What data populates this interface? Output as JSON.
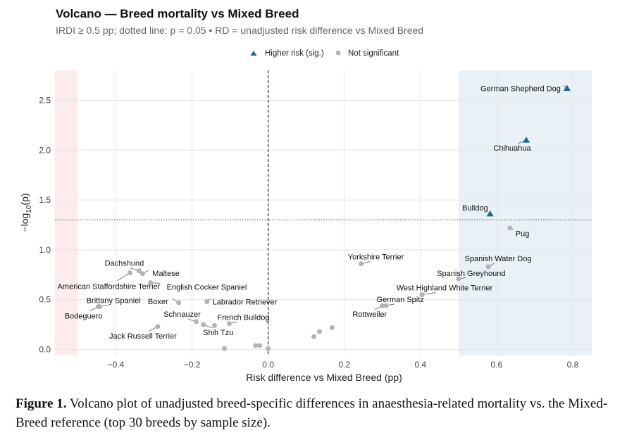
{
  "chart_data": {
    "type": "scatter",
    "title": "Volcano — Breed mortality vs Mixed Breed",
    "subtitle": "IRDI ≥ 0.5 pp; dotted line: p = 0.05 • RD = unadjusted risk difference vs Mixed Breed",
    "xlabel": "Risk difference vs Mixed Breed (pp)",
    "ylabel_main": "−log",
    "ylabel_sub": "10",
    "ylabel_tail": "(p)",
    "xlim": [
      -0.56,
      0.85
    ],
    "ylim": [
      -0.06,
      2.8
    ],
    "xticks": [
      -0.4,
      -0.2,
      0.0,
      0.2,
      0.4,
      0.6,
      0.8
    ],
    "xtick_labels": [
      "−0.4",
      "−0.2",
      "0.0",
      "0.2",
      "0.4",
      "0.6",
      "0.8"
    ],
    "yticks": [
      0.0,
      0.5,
      1.0,
      1.5,
      2.0,
      2.5
    ],
    "ytick_labels": [
      "0.0",
      "0.5",
      "1.0",
      "1.5",
      "2.0",
      "2.5"
    ],
    "grid": true,
    "legend_position": "top",
    "significance_line_y": 1.301,
    "reference_line_x": 0,
    "shaded_regions": [
      {
        "xmin": -0.56,
        "xmax": -0.5,
        "color": "#fdecec"
      },
      {
        "xmin": 0.5,
        "xmax": 0.85,
        "color": "#e9f0f6"
      }
    ],
    "legend": [
      {
        "label": "Higher risk (sig.)",
        "marker": "triangle",
        "color": "#1a6a86"
      },
      {
        "label": "Not significant",
        "marker": "circle",
        "color": "#b3b3b3"
      }
    ],
    "points": [
      {
        "label": "German Shepherd Dog",
        "x": 0.785,
        "y": 2.62,
        "group": "Higher risk (sig.)"
      },
      {
        "label": "Chihuahua",
        "x": 0.678,
        "y": 2.1,
        "group": "Higher risk (sig.)"
      },
      {
        "label": "Bulldog",
        "x": 0.583,
        "y": 1.36,
        "group": "Higher risk (sig.)"
      },
      {
        "label": "Pug",
        "x": 0.635,
        "y": 1.22,
        "group": "Not significant"
      },
      {
        "label": "Spanish Water Dog",
        "x": 0.578,
        "y": 0.83,
        "group": "Not significant"
      },
      {
        "label": "Spanish Greyhound",
        "x": 0.5,
        "y": 0.71,
        "group": "Not significant"
      },
      {
        "label": "West Highland White Terrier",
        "x": 0.404,
        "y": 0.55,
        "group": "Not significant"
      },
      {
        "label": "German Spitz",
        "x": 0.31,
        "y": 0.44,
        "group": "Not significant"
      },
      {
        "label": "Rottweiler",
        "x": 0.3,
        "y": 0.44,
        "group": "Not significant"
      },
      {
        "label": "Yorkshire Terrier",
        "x": 0.244,
        "y": 0.86,
        "group": "Not significant"
      },
      {
        "label": "",
        "x": 0.12,
        "y": 0.13,
        "group": "Not significant"
      },
      {
        "label": "",
        "x": 0.135,
        "y": 0.18,
        "group": "Not significant"
      },
      {
        "label": "",
        "x": 0.168,
        "y": 0.22,
        "group": "Not significant"
      },
      {
        "label": "",
        "x": 0.0,
        "y": 0.01,
        "group": "Not significant"
      },
      {
        "label": "",
        "x": -0.022,
        "y": 0.04,
        "group": "Not significant"
      },
      {
        "label": "",
        "x": -0.033,
        "y": 0.04,
        "group": "Not significant"
      },
      {
        "label": "",
        "x": -0.115,
        "y": 0.01,
        "group": "Not significant"
      },
      {
        "label": "French Bulldog",
        "x": -0.102,
        "y": 0.26,
        "group": "Not significant"
      },
      {
        "label": "Shih Tzu",
        "x": -0.17,
        "y": 0.25,
        "group": "Not significant"
      },
      {
        "label": "",
        "x": -0.141,
        "y": 0.24,
        "group": "Not significant"
      },
      {
        "label": "Schnauzer",
        "x": -0.189,
        "y": 0.28,
        "group": "Not significant"
      },
      {
        "label": "Labrador Retriever",
        "x": -0.161,
        "y": 0.48,
        "group": "Not significant"
      },
      {
        "label": "Boxer",
        "x": -0.235,
        "y": 0.47,
        "group": "Not significant"
      },
      {
        "label": "Jack Russell Terrier",
        "x": -0.29,
        "y": 0.23,
        "group": "Not significant"
      },
      {
        "label": "Bodeguero",
        "x": -0.446,
        "y": 0.43,
        "group": "Not significant"
      },
      {
        "label": "Brittany Spaniel",
        "x": -0.443,
        "y": 0.43,
        "group": "Not significant"
      },
      {
        "label": "American Staffordshire Terrier",
        "x": -0.363,
        "y": 0.77,
        "group": "Not significant"
      },
      {
        "label": "Dachshund",
        "x": -0.339,
        "y": 0.79,
        "group": "Not significant"
      },
      {
        "label": "Maltese",
        "x": -0.33,
        "y": 0.76,
        "group": "Not significant"
      },
      {
        "label": "English Cocker Spaniel",
        "x": -0.309,
        "y": 0.67,
        "group": "Not significant"
      }
    ]
  },
  "caption": {
    "label": "Figure 1.",
    "text": " Volcano plot of unadjusted breed-specific differences in anaesthesia-related mortality vs. the Mixed-Breed reference (top 30 breeds by sample size)."
  }
}
